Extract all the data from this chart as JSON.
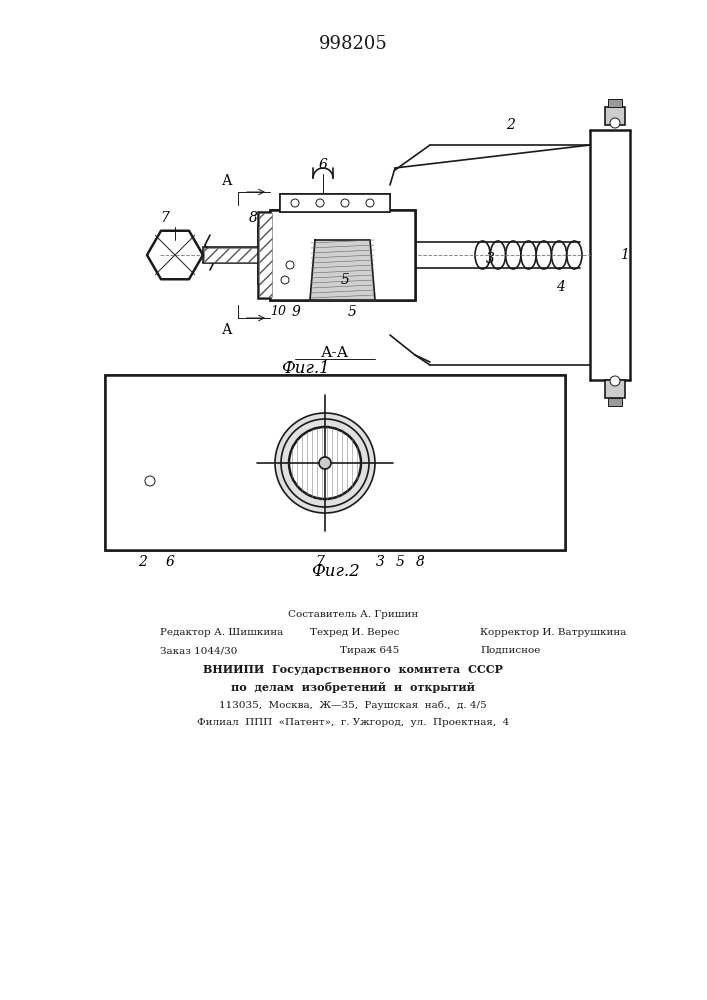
{
  "title": "998205",
  "fig1_label": "Фиг.1",
  "fig2_label": "Фиг.2",
  "section_label": "А-А",
  "line_color": "#1a1a1a"
}
